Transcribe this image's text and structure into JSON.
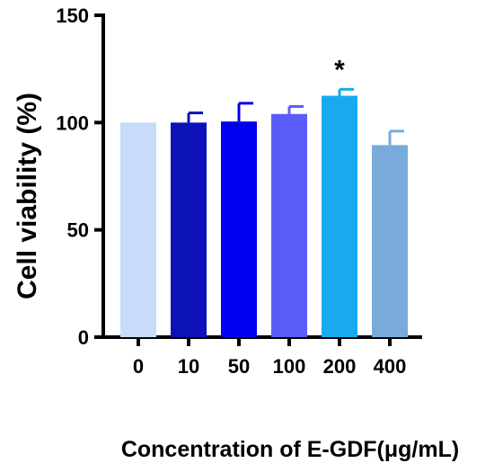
{
  "chart_data": {
    "type": "bar",
    "categories": [
      "0",
      "10",
      "50",
      "100",
      "200",
      "400"
    ],
    "values": [
      100,
      100,
      100.5,
      104,
      112.5,
      89.5
    ],
    "errors": [
      0,
      4.5,
      8.5,
      3.5,
      3,
      6.5
    ],
    "colors": [
      "#c6dcfa",
      "#0c12b8",
      "#0000f0",
      "#5a5cfa",
      "#18aaf0",
      "#78abdc"
    ],
    "ylabel": "Cell viability (%)",
    "xlabel": "Concentration of E-GDF(μg/mL)",
    "ylim": [
      0,
      150
    ],
    "yticks": [
      0,
      50,
      100,
      150
    ],
    "annotations": [
      {
        "category": "200",
        "text": "*"
      }
    ],
    "grid": false,
    "legend": "none"
  }
}
